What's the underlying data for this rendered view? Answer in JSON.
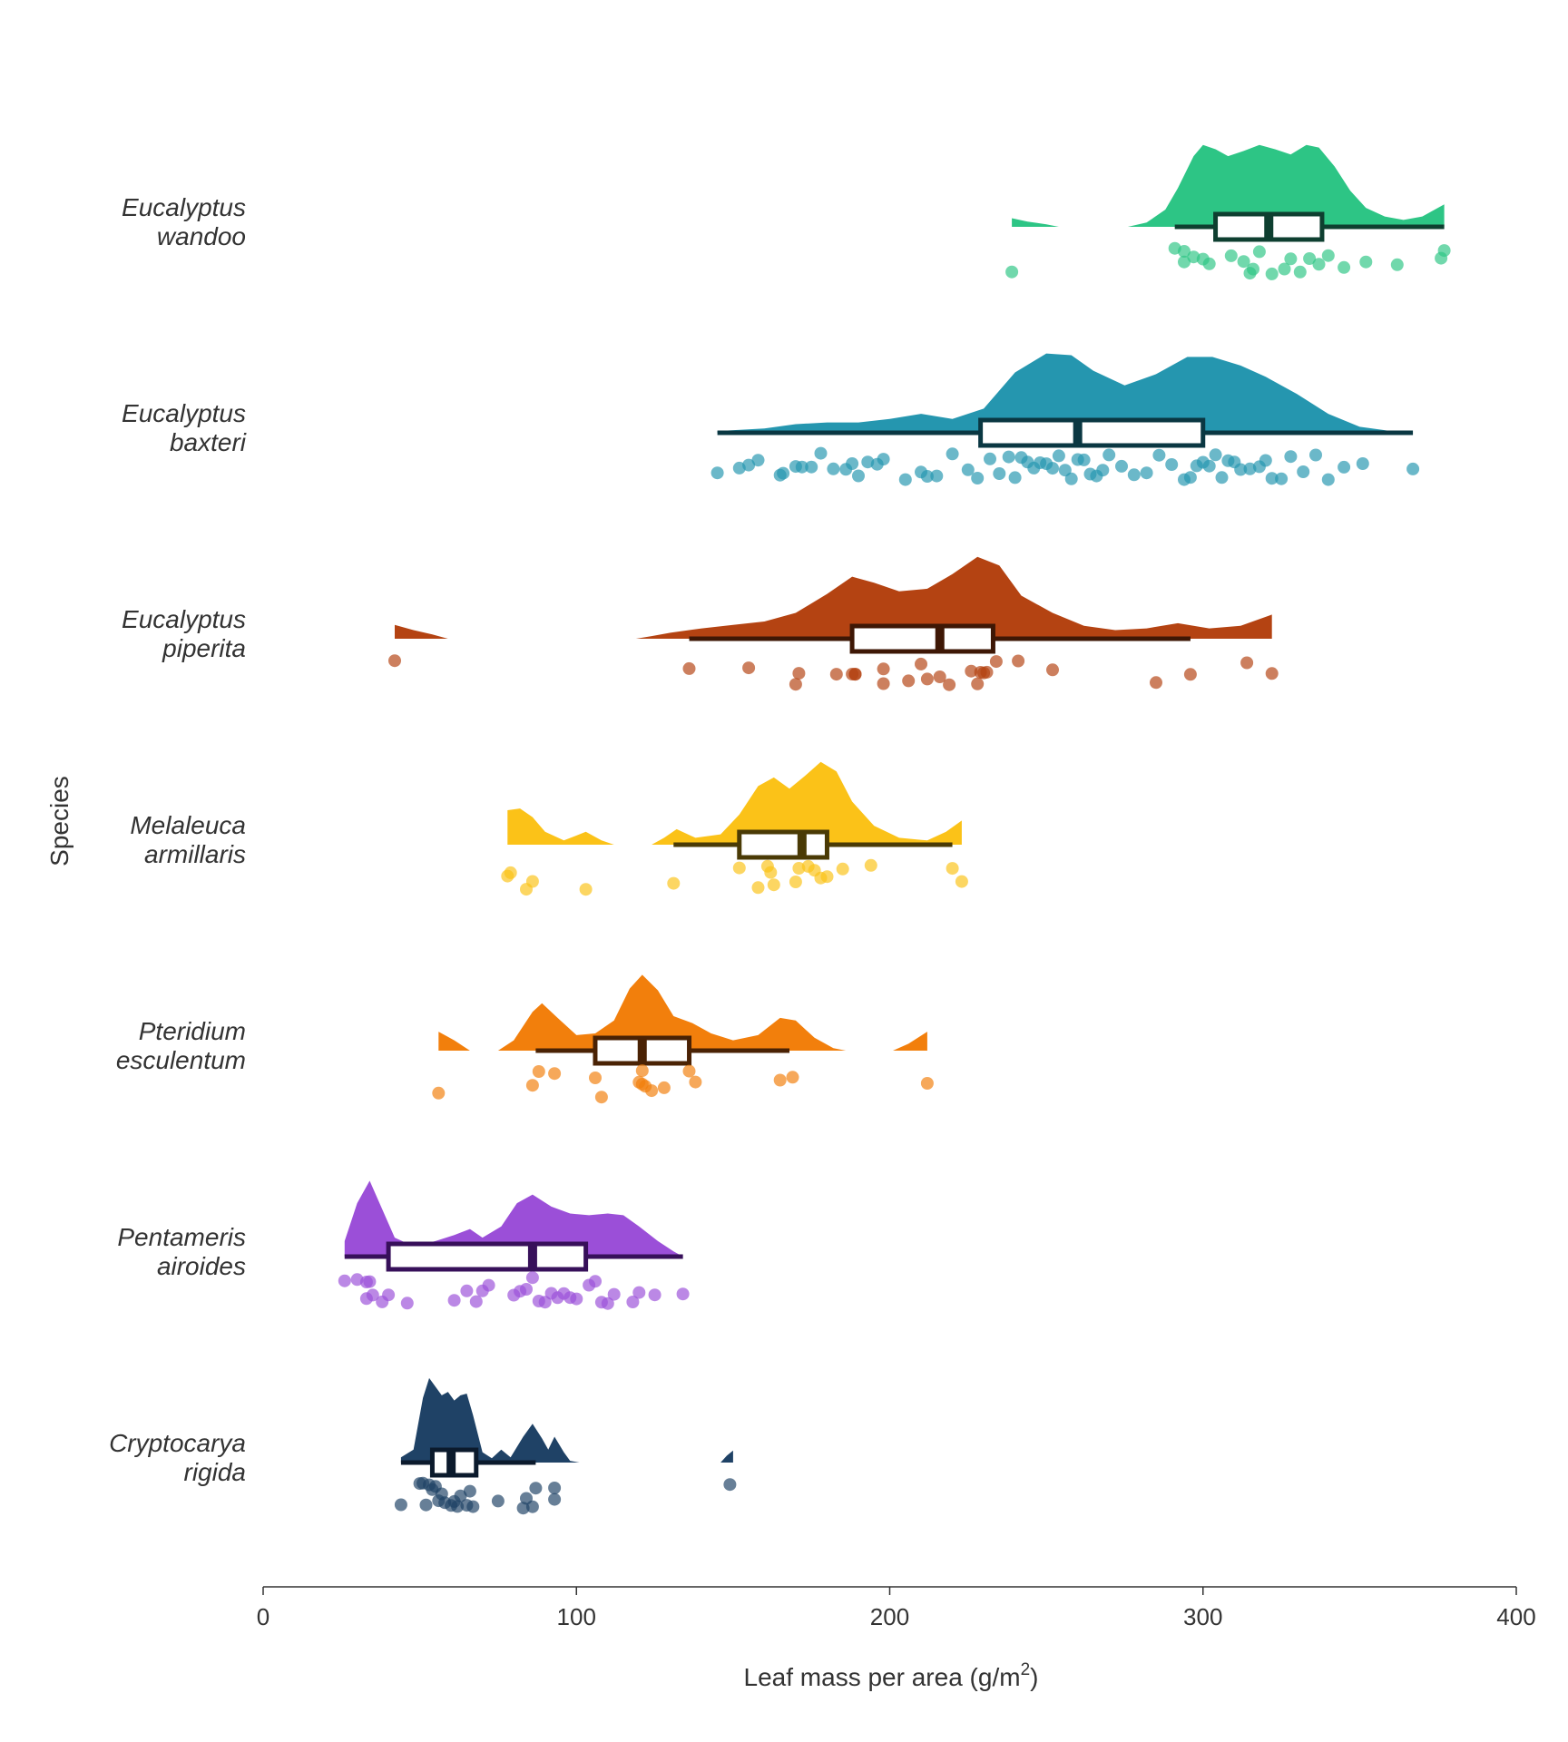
{
  "chart_data": {
    "type": "raincloud",
    "xlabel": "Leaf mass per area (g/m",
    "xlabel_sup": "2",
    "xlabel_suffix": ")",
    "ylabel": "Species",
    "xlim": [
      0,
      400
    ],
    "xticks": [
      0,
      100,
      200,
      300,
      400
    ],
    "xtick_labels": [
      "0",
      "100",
      "200",
      "300",
      "400"
    ],
    "grid": false,
    "species": [
      {
        "label_lines": [
          "Eucalyptus",
          "wandoo"
        ],
        "fill": "#2DC585",
        "dark": "#0E3F30",
        "box": {
          "whisker_low": 291,
          "q1": 304,
          "median": 321,
          "q3": 338,
          "whisker_high": 377
        },
        "points": [
          239,
          291,
          294,
          297,
          300,
          302,
          294,
          309,
          313,
          315,
          316,
          318,
          322,
          326,
          328,
          331,
          334,
          337,
          340,
          345,
          352,
          362,
          376,
          377
        ],
        "density": [
          [
            239,
            0.1
          ],
          [
            244,
            0.06
          ],
          [
            250,
            0.03
          ],
          [
            254,
            0.0
          ],
          [
            276,
            0.0
          ],
          [
            282,
            0.05
          ],
          [
            288,
            0.2
          ],
          [
            292,
            0.45
          ],
          [
            297,
            0.82
          ],
          [
            300,
            0.95
          ],
          [
            304,
            0.9
          ],
          [
            308,
            0.82
          ],
          [
            313,
            0.88
          ],
          [
            318,
            0.95
          ],
          [
            323,
            0.9
          ],
          [
            328,
            0.84
          ],
          [
            333,
            0.95
          ],
          [
            337,
            0.92
          ],
          [
            342,
            0.7
          ],
          [
            347,
            0.42
          ],
          [
            352,
            0.22
          ],
          [
            358,
            0.12
          ],
          [
            364,
            0.08
          ],
          [
            370,
            0.12
          ],
          [
            377,
            0.26
          ]
        ]
      },
      {
        "label_lines": [
          "Eucalyptus",
          "baxteri"
        ],
        "fill": "#2596AF",
        "dark": "#0A3742",
        "box": {
          "whisker_low": 145,
          "q1": 229,
          "median": 260,
          "q3": 300,
          "whisker_high": 367
        },
        "points": [
          145,
          152,
          155,
          158,
          165,
          166,
          170,
          172,
          175,
          178,
          182,
          186,
          188,
          190,
          193,
          196,
          198,
          205,
          210,
          212,
          215,
          220,
          225,
          228,
          232,
          235,
          238,
          240,
          242,
          244,
          246,
          248,
          250,
          252,
          254,
          256,
          258,
          260,
          262,
          264,
          266,
          268,
          270,
          274,
          278,
          282,
          286,
          290,
          294,
          296,
          298,
          300,
          302,
          304,
          306,
          308,
          310,
          312,
          315,
          318,
          320,
          322,
          325,
          328,
          332,
          336,
          340,
          345,
          351,
          367
        ],
        "density": [
          [
            145,
            0.02
          ],
          [
            160,
            0.05
          ],
          [
            170,
            0.1
          ],
          [
            180,
            0.12
          ],
          [
            190,
            0.12
          ],
          [
            200,
            0.16
          ],
          [
            210,
            0.22
          ],
          [
            220,
            0.16
          ],
          [
            230,
            0.28
          ],
          [
            240,
            0.7
          ],
          [
            250,
            0.92
          ],
          [
            258,
            0.9
          ],
          [
            265,
            0.72
          ],
          [
            275,
            0.55
          ],
          [
            285,
            0.68
          ],
          [
            295,
            0.88
          ],
          [
            303,
            0.88
          ],
          [
            312,
            0.78
          ],
          [
            320,
            0.65
          ],
          [
            330,
            0.45
          ],
          [
            340,
            0.22
          ],
          [
            350,
            0.07
          ],
          [
            360,
            0.02
          ],
          [
            367,
            0.0
          ]
        ]
      },
      {
        "label_lines": [
          "Eucalyptus",
          "piperita"
        ],
        "fill": "#B44312",
        "dark": "#3E1705",
        "box": {
          "whisker_low": 136,
          "q1": 188,
          "median": 216,
          "q3": 233,
          "whisker_high": 296
        },
        "points": [
          42,
          136,
          155,
          170,
          171,
          183,
          188,
          189,
          189,
          198,
          198,
          206,
          210,
          212,
          216,
          219,
          226,
          228,
          229,
          230,
          231,
          234,
          241,
          252,
          285,
          296,
          314,
          322
        ],
        "density": [
          [
            42,
            0.16
          ],
          [
            48,
            0.1
          ],
          [
            54,
            0.05
          ],
          [
            59,
            0.0
          ],
          [
            119,
            0.0
          ],
          [
            124,
            0.03
          ],
          [
            130,
            0.07
          ],
          [
            140,
            0.12
          ],
          [
            150,
            0.16
          ],
          [
            160,
            0.2
          ],
          [
            170,
            0.3
          ],
          [
            180,
            0.52
          ],
          [
            188,
            0.72
          ],
          [
            195,
            0.65
          ],
          [
            203,
            0.55
          ],
          [
            212,
            0.58
          ],
          [
            220,
            0.75
          ],
          [
            228,
            0.95
          ],
          [
            235,
            0.85
          ],
          [
            242,
            0.5
          ],
          [
            252,
            0.3
          ],
          [
            262,
            0.15
          ],
          [
            272,
            0.1
          ],
          [
            282,
            0.12
          ],
          [
            292,
            0.18
          ],
          [
            302,
            0.12
          ],
          [
            312,
            0.15
          ],
          [
            322,
            0.28
          ]
        ]
      },
      {
        "label_lines": [
          "Melaleuca",
          "armillaris"
        ],
        "fill": "#FBC218",
        "dark": "#4A3A05",
        "box": {
          "whisker_low": 131,
          "q1": 152,
          "median": 172,
          "q3": 180,
          "whisker_high": 220
        },
        "points": [
          78,
          79,
          84,
          86,
          103,
          131,
          152,
          158,
          161,
          162,
          163,
          170,
          171,
          174,
          176,
          178,
          180,
          185,
          194,
          220,
          223
        ],
        "density": [
          [
            78,
            0.4
          ],
          [
            82,
            0.42
          ],
          [
            86,
            0.32
          ],
          [
            90,
            0.15
          ],
          [
            96,
            0.05
          ],
          [
            103,
            0.15
          ],
          [
            108,
            0.05
          ],
          [
            112,
            0.0
          ],
          [
            124,
            0.0
          ],
          [
            128,
            0.08
          ],
          [
            132,
            0.18
          ],
          [
            138,
            0.08
          ],
          [
            146,
            0.12
          ],
          [
            152,
            0.35
          ],
          [
            158,
            0.68
          ],
          [
            163,
            0.78
          ],
          [
            168,
            0.65
          ],
          [
            173,
            0.8
          ],
          [
            178,
            0.96
          ],
          [
            183,
            0.85
          ],
          [
            188,
            0.5
          ],
          [
            195,
            0.22
          ],
          [
            203,
            0.08
          ],
          [
            212,
            0.05
          ],
          [
            218,
            0.15
          ],
          [
            223,
            0.28
          ]
        ]
      },
      {
        "label_lines": [
          "Pteridium",
          "esculentum"
        ],
        "fill": "#F27F0C",
        "dark": "#4A2204",
        "box": {
          "whisker_low": 87,
          "q1": 106,
          "median": 121,
          "q3": 136,
          "whisker_high": 168
        },
        "points": [
          56,
          86,
          88,
          93,
          106,
          108,
          120,
          121,
          121,
          122,
          124,
          128,
          136,
          138,
          165,
          169,
          212
        ],
        "density": [
          [
            56,
            0.22
          ],
          [
            61,
            0.12
          ],
          [
            66,
            0.0
          ],
          [
            75,
            0.0
          ],
          [
            80,
            0.12
          ],
          [
            86,
            0.45
          ],
          [
            89,
            0.55
          ],
          [
            94,
            0.38
          ],
          [
            100,
            0.18
          ],
          [
            106,
            0.2
          ],
          [
            112,
            0.35
          ],
          [
            117,
            0.72
          ],
          [
            121,
            0.88
          ],
          [
            126,
            0.7
          ],
          [
            131,
            0.4
          ],
          [
            137,
            0.32
          ],
          [
            143,
            0.2
          ],
          [
            150,
            0.12
          ],
          [
            158,
            0.18
          ],
          [
            165,
            0.38
          ],
          [
            170,
            0.35
          ],
          [
            176,
            0.15
          ],
          [
            182,
            0.03
          ],
          [
            186,
            0.0
          ],
          [
            201,
            0.0
          ],
          [
            206,
            0.08
          ],
          [
            212,
            0.22
          ]
        ]
      },
      {
        "label_lines": [
          "Pentameris",
          "airoides"
        ],
        "fill": "#9B4FD8",
        "dark": "#37105A",
        "box": {
          "whisker_low": 26,
          "q1": 40,
          "median": 86,
          "q3": 103,
          "whisker_high": 134
        },
        "points": [
          26,
          30,
          33,
          33,
          34,
          35,
          38,
          40,
          46,
          61,
          65,
          68,
          70,
          72,
          80,
          82,
          84,
          86,
          88,
          90,
          92,
          94,
          96,
          98,
          100,
          104,
          106,
          108,
          110,
          112,
          118,
          120,
          125,
          134
        ],
        "density": [
          [
            26,
            0.18
          ],
          [
            30,
            0.62
          ],
          [
            34,
            0.88
          ],
          [
            38,
            0.55
          ],
          [
            42,
            0.22
          ],
          [
            48,
            0.12
          ],
          [
            55,
            0.18
          ],
          [
            61,
            0.25
          ],
          [
            66,
            0.32
          ],
          [
            70,
            0.22
          ],
          [
            76,
            0.35
          ],
          [
            81,
            0.62
          ],
          [
            86,
            0.72
          ],
          [
            92,
            0.58
          ],
          [
            98,
            0.5
          ],
          [
            104,
            0.48
          ],
          [
            110,
            0.5
          ],
          [
            115,
            0.48
          ],
          [
            120,
            0.35
          ],
          [
            126,
            0.18
          ],
          [
            131,
            0.06
          ],
          [
            134,
            0.0
          ]
        ]
      },
      {
        "label_lines": [
          "Cryptocarya",
          "rigida"
        ],
        "fill": "#1F4266",
        "dark": "#0B1A2C",
        "box": {
          "whisker_low": 44,
          "q1": 54,
          "median": 60,
          "q3": 68,
          "whisker_high": 87
        },
        "points": [
          44,
          50,
          51,
          52,
          53,
          54,
          55,
          56,
          57,
          58,
          60,
          61,
          62,
          63,
          65,
          66,
          67,
          75,
          83,
          84,
          86,
          87,
          93,
          93,
          149
        ],
        "density": [
          [
            44,
            0.06
          ],
          [
            48,
            0.15
          ],
          [
            51,
            0.75
          ],
          [
            53,
            0.98
          ],
          [
            55,
            0.88
          ],
          [
            57,
            0.78
          ],
          [
            59,
            0.82
          ],
          [
            61,
            0.72
          ],
          [
            63,
            0.78
          ],
          [
            65,
            0.8
          ],
          [
            67,
            0.55
          ],
          [
            70,
            0.12
          ],
          [
            73,
            0.05
          ],
          [
            76,
            0.15
          ],
          [
            79,
            0.06
          ],
          [
            83,
            0.3
          ],
          [
            86,
            0.45
          ],
          [
            89,
            0.28
          ],
          [
            91,
            0.15
          ],
          [
            93,
            0.3
          ],
          [
            96,
            0.12
          ],
          [
            98,
            0.02
          ],
          [
            101,
            0.0
          ],
          [
            146,
            0.0
          ],
          [
            148,
            0.08
          ],
          [
            150,
            0.14
          ]
        ]
      }
    ]
  }
}
